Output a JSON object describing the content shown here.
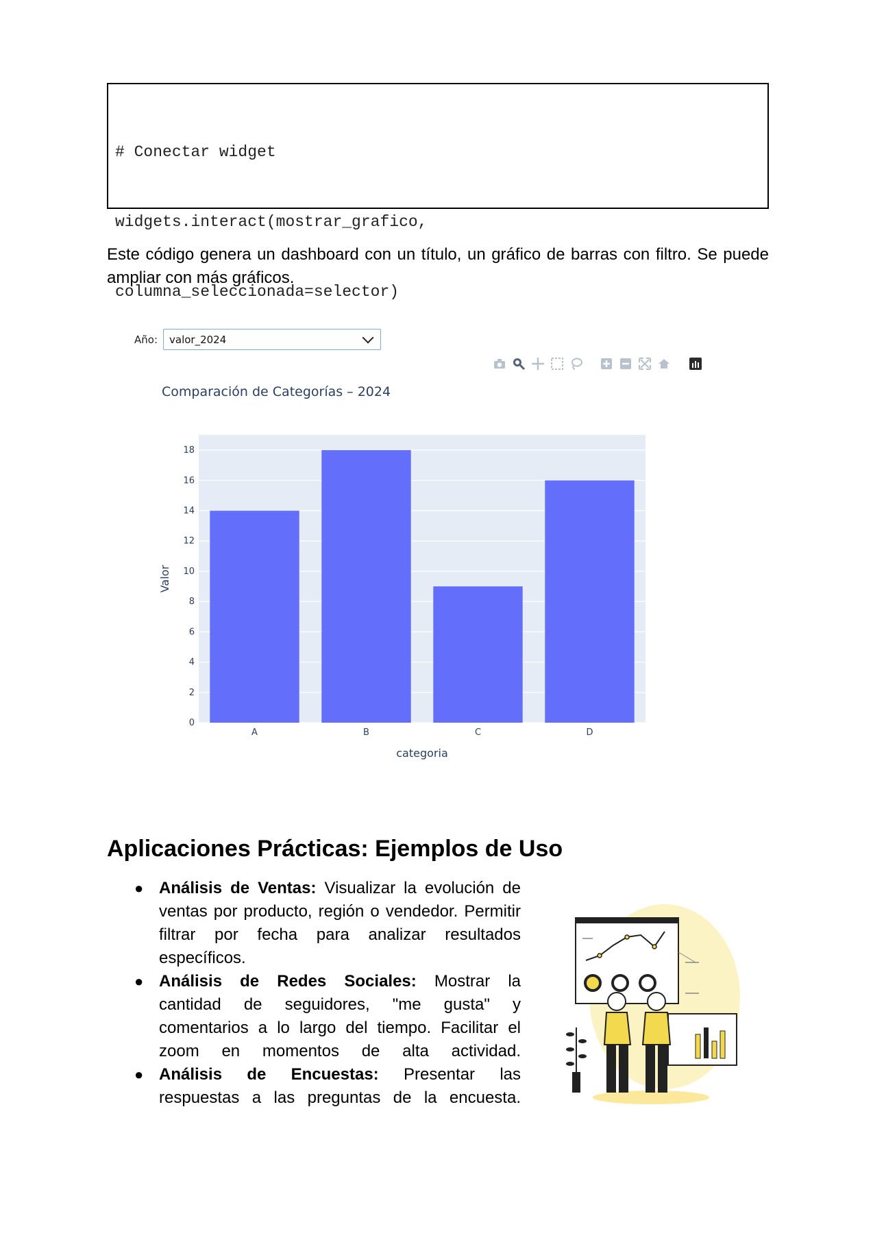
{
  "code": {
    "lines": [
      "# Conectar widget",
      "widgets.interact(mostrar_grafico,",
      "columna_seleccionada=selector)"
    ]
  },
  "intro_text": "Este código genera un dashboard con un título, un gráfico de barras con filtro. Se puede ampliar con más gráficos.",
  "widget": {
    "selector_label": "Año:",
    "selector_value": "valor_2024"
  },
  "modebar_icons": [
    "camera-icon",
    "zoom-icon",
    "pan-icon",
    "box-select-icon",
    "lasso-icon",
    "zoom-in-icon",
    "zoom-out-icon",
    "autoscale-icon",
    "reset-axes-icon",
    "plotly-logo-icon"
  ],
  "chart_data": {
    "type": "bar",
    "title": "Comparación de Categorías – 2024",
    "categories": [
      "A",
      "B",
      "C",
      "D"
    ],
    "values": [
      14,
      18,
      9,
      16
    ],
    "xlabel": "categoria",
    "ylabel": "Valor",
    "ylim": [
      0,
      19
    ],
    "yticks": [
      0,
      2,
      4,
      6,
      8,
      10,
      12,
      14,
      16,
      18
    ],
    "bar_color": "#636efa",
    "plot_bg": "#e5ecf6",
    "grid": true
  },
  "section_title": "Aplicaciones Prácticas: Ejemplos de Uso",
  "bullets": [
    {
      "bold": "Análisis de Ventas:",
      "text": " Visualizar la evolución de ventas por producto, región o vendedor. Permitir filtrar por fecha para analizar resultados específicos."
    },
    {
      "bold": "Análisis de Redes Sociales:",
      "text": " Mostrar la cantidad de seguidores, \"me gusta\" y comentarios a lo largo del tiempo. Facilitar el zoom en momentos de alta actividad."
    },
    {
      "bold": "Análisis de Encuestas:",
      "text": " Presentar las respuestas a las preguntas de la encuesta."
    }
  ]
}
